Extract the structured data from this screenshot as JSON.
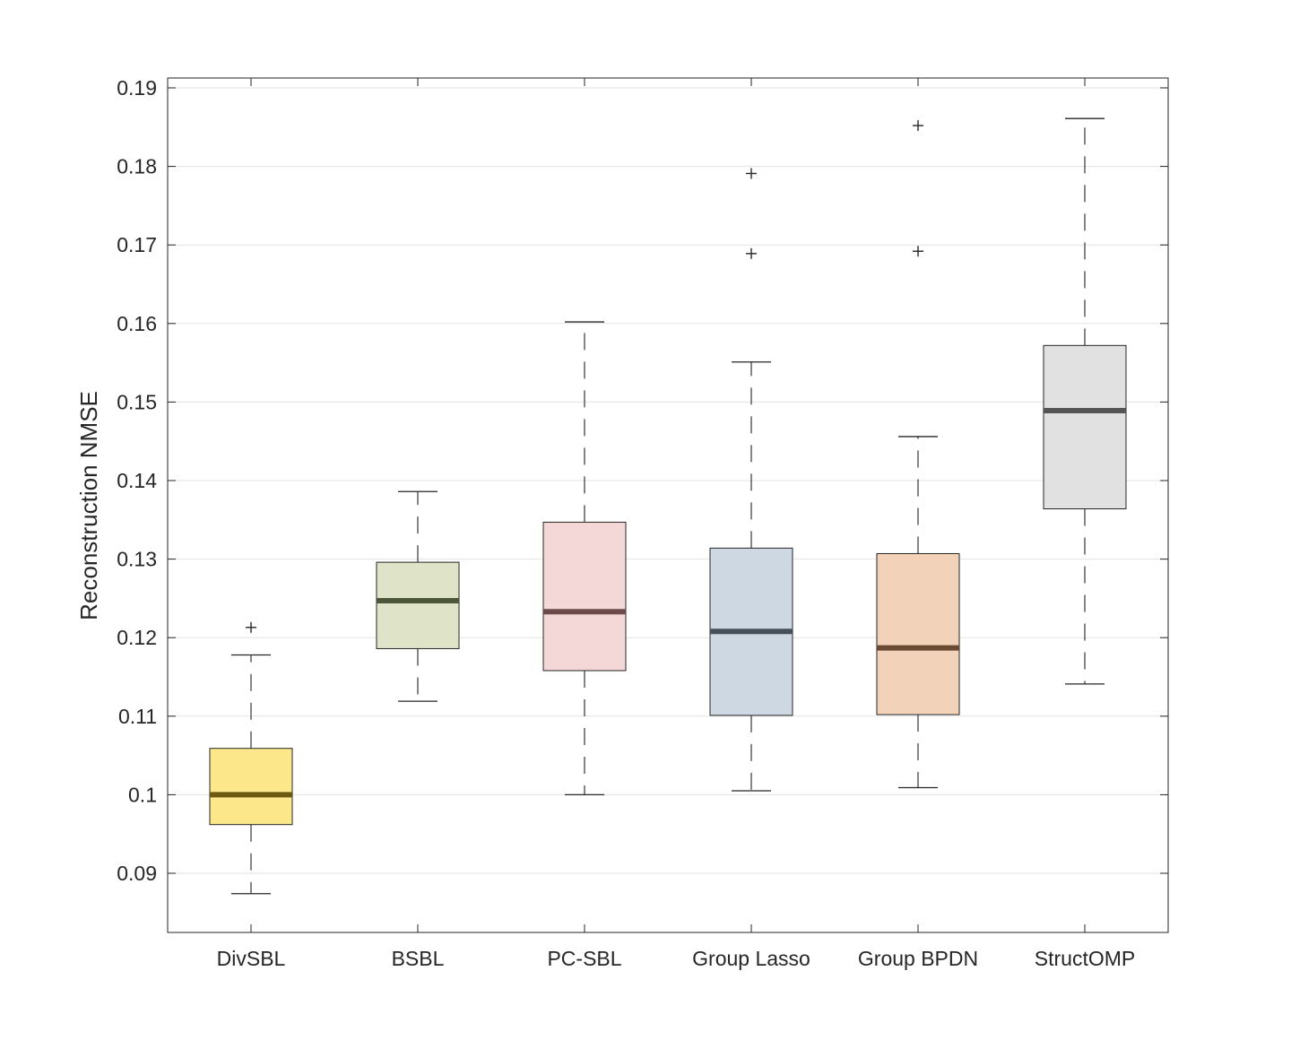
{
  "chart_data": {
    "type": "boxplot",
    "title": "",
    "xlabel": "",
    "ylabel": "Reconstruction NMSE",
    "ylim": [
      0.0825,
      0.191
    ],
    "yticks": [
      0.09,
      0.1,
      0.11,
      0.12,
      0.13,
      0.14,
      0.15,
      0.16,
      0.17,
      0.18,
      0.19
    ],
    "ytick_labels": [
      "0.09",
      "0.1",
      "0.11",
      "0.12",
      "0.13",
      "0.14",
      "0.15",
      "0.16",
      "0.17",
      "0.18",
      "0.19"
    ],
    "grid": true,
    "categories": [
      "DivSBL",
      "BSBL",
      "PC-SBL",
      "Group Lasso",
      "Group BPDN",
      "StructOMP"
    ],
    "boxes": [
      {
        "name": "DivSBL",
        "whisker_low": 0.0874,
        "q1": 0.0962,
        "median": 0.1,
        "q3": 0.1059,
        "whisker_high": 0.1178,
        "outliers": [
          0.1213
        ],
        "fill": "#fce88a",
        "median_color": "#6b5a10"
      },
      {
        "name": "BSBL",
        "whisker_low": 0.1119,
        "q1": 0.1186,
        "median": 0.1247,
        "q3": 0.1296,
        "whisker_high": 0.1386,
        "outliers": [],
        "fill": "#dfe4c8",
        "median_color": "#4c573a"
      },
      {
        "name": "PC-SBL",
        "whisker_low": 0.1,
        "q1": 0.1158,
        "median": 0.1233,
        "q3": 0.1347,
        "whisker_high": 0.1602,
        "outliers": [],
        "fill": "#f4d7d7",
        "median_color": "#6d4b4b"
      },
      {
        "name": "Group Lasso",
        "whisker_low": 0.1005,
        "q1": 0.1101,
        "median": 0.1208,
        "q3": 0.1314,
        "whisker_high": 0.1551,
        "outliers": [
          0.1689,
          0.1791
        ],
        "fill": "#cdd8e3",
        "median_color": "#474f58"
      },
      {
        "name": "Group BPDN",
        "whisker_low": 0.1009,
        "q1": 0.1102,
        "median": 0.1187,
        "q3": 0.1307,
        "whisker_high": 0.1456,
        "outliers": [
          0.1692,
          0.1852
        ],
        "fill": "#f2d2b8",
        "median_color": "#6b4a33"
      },
      {
        "name": "StructOMP",
        "whisker_low": 0.1141,
        "q1": 0.1364,
        "median": 0.1489,
        "q3": 0.1572,
        "whisker_high": 0.1861,
        "outliers": [],
        "fill": "#e1e1e1",
        "median_color": "#555555"
      }
    ]
  }
}
